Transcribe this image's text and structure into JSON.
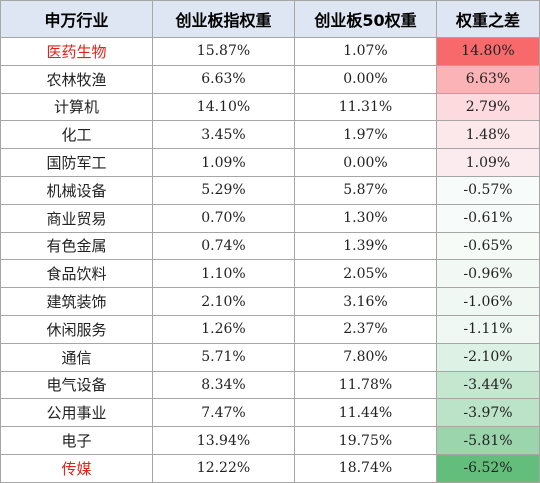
{
  "table": {
    "headers": [
      "申万行业",
      "创业板指权重",
      "创业板50权重",
      "权重之差"
    ],
    "rows": [
      {
        "industry": "医药生物",
        "w1": "15.87%",
        "w2": "1.07%",
        "diff": "14.80%",
        "industry_color": "#e0221a",
        "diff_bg": "#f8696b"
      },
      {
        "industry": "农林牧渔",
        "w1": "6.63%",
        "w2": "0.00%",
        "diff": "6.63%",
        "industry_color": "#222222",
        "diff_bg": "#fbb3b6"
      },
      {
        "industry": "计算机",
        "w1": "14.10%",
        "w2": "11.31%",
        "diff": "2.79%",
        "industry_color": "#222222",
        "diff_bg": "#fcdadd"
      },
      {
        "industry": "化工",
        "w1": "3.45%",
        "w2": "1.97%",
        "diff": "1.48%",
        "industry_color": "#222222",
        "diff_bg": "#fce7ea"
      },
      {
        "industry": "国防军工",
        "w1": "1.09%",
        "w2": "0.00%",
        "diff": "1.09%",
        "industry_color": "#222222",
        "diff_bg": "#fcebee"
      },
      {
        "industry": "机械设备",
        "w1": "5.29%",
        "w2": "5.87%",
        "diff": "-0.57%",
        "industry_color": "#222222",
        "diff_bg": "#f7fbf9"
      },
      {
        "industry": "商业贸易",
        "w1": "0.70%",
        "w2": "1.30%",
        "diff": "-0.61%",
        "industry_color": "#222222",
        "diff_bg": "#f7fbf9"
      },
      {
        "industry": "有色金属",
        "w1": "0.74%",
        "w2": "1.39%",
        "diff": "-0.65%",
        "industry_color": "#222222",
        "diff_bg": "#f6fbf8"
      },
      {
        "industry": "食品饮料",
        "w1": "1.10%",
        "w2": "2.05%",
        "diff": "-0.96%",
        "industry_color": "#222222",
        "diff_bg": "#f2f9f5"
      },
      {
        "industry": "建筑装饰",
        "w1": "2.10%",
        "w2": "3.16%",
        "diff": "-1.06%",
        "industry_color": "#222222",
        "diff_bg": "#f0f8f4"
      },
      {
        "industry": "休闲服务",
        "w1": "1.26%",
        "w2": "2.37%",
        "diff": "-1.11%",
        "industry_color": "#222222",
        "diff_bg": "#eff8f3"
      },
      {
        "industry": "通信",
        "w1": "5.71%",
        "w2": "7.80%",
        "diff": "-2.10%",
        "industry_color": "#222222",
        "diff_bg": "#ddf1e5"
      },
      {
        "industry": "电气设备",
        "w1": "8.34%",
        "w2": "11.78%",
        "diff": "-3.44%",
        "industry_color": "#222222",
        "diff_bg": "#c5e7d0"
      },
      {
        "industry": "公用事业",
        "w1": "7.47%",
        "w2": "11.44%",
        "diff": "-3.97%",
        "industry_color": "#222222",
        "diff_bg": "#bbe3c8"
      },
      {
        "industry": "电子",
        "w1": "13.94%",
        "w2": "19.75%",
        "diff": "-5.81%",
        "industry_color": "#222222",
        "diff_bg": "#9ad5ab"
      },
      {
        "industry": "传媒",
        "w1": "12.22%",
        "w2": "18.74%",
        "diff": "-6.52%",
        "industry_color": "#e0221a",
        "diff_bg": "#63be7b"
      }
    ]
  }
}
